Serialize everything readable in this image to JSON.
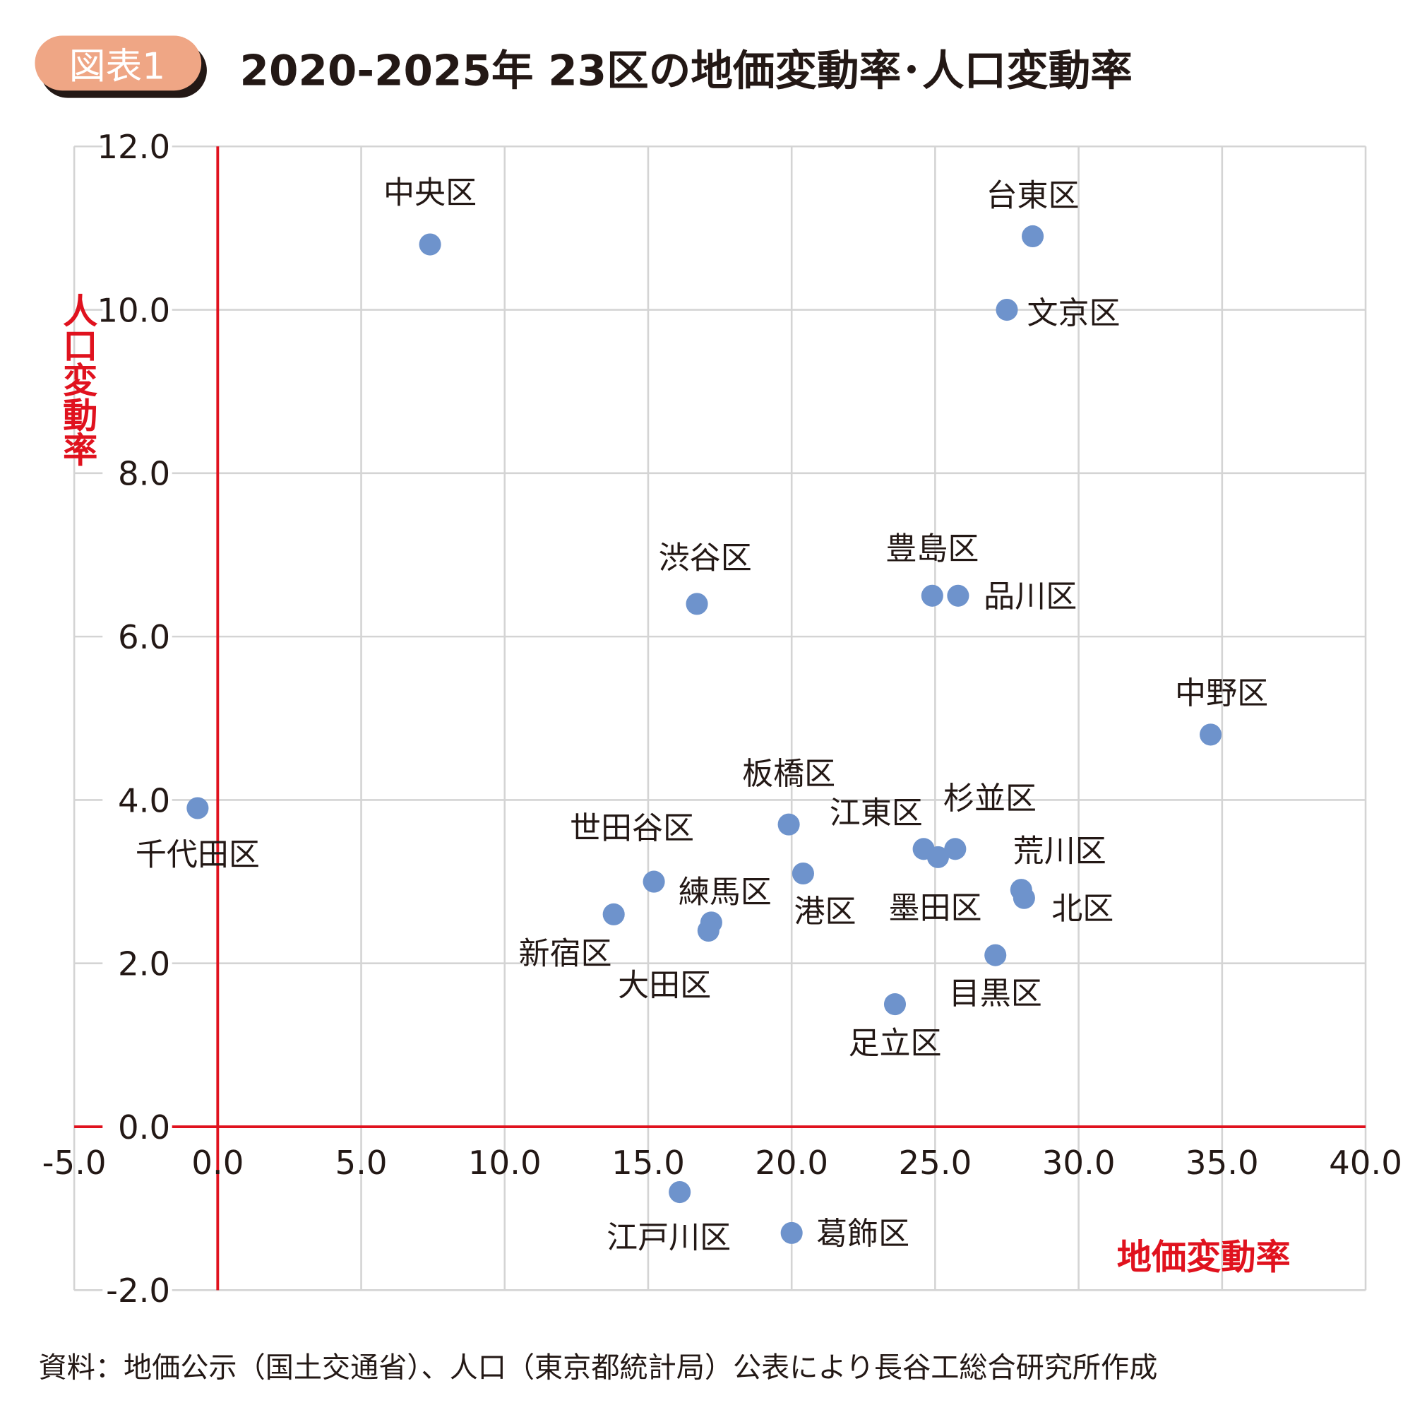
{
  "header": {
    "badge": "図表1",
    "title": "2020-2025年 23区の地価変動率･人口変動率"
  },
  "footer": {
    "source": "資料：地価公示（国土交通省）、人口（東京都統計局）公表により長谷工総合研究所作成"
  },
  "colors": {
    "badge": "#EFA685",
    "badge_shadow": "#231815",
    "point": "#6E93CC",
    "axis_red": "#E0121E",
    "grid": "#D4D4D4"
  },
  "chart_data": {
    "type": "scatter",
    "title": "2020-2025年 23区の地価変動率･人口変動率",
    "xlabel": "地価変動率",
    "ylabel": "人口変動率",
    "xlim": [
      -5,
      40
    ],
    "ylim": [
      -2,
      12
    ],
    "xticks": [
      "-5.0",
      "0.0",
      "5.0",
      "10.0",
      "15.0",
      "20.0",
      "25.0",
      "30.0",
      "35.0",
      "40.0"
    ],
    "yticks": [
      "-2.0",
      "0.0",
      "2.0",
      "4.0",
      "6.0",
      "8.0",
      "10.0",
      "12.0"
    ],
    "grid": true,
    "points": [
      {
        "label": "中央区",
        "x": 7.4,
        "y": 10.8
      },
      {
        "label": "台東区",
        "x": 28.4,
        "y": 10.9
      },
      {
        "label": "文京区",
        "x": 27.5,
        "y": 10.0
      },
      {
        "label": "渋谷区",
        "x": 16.7,
        "y": 6.4
      },
      {
        "label": "豊島区",
        "x": 24.9,
        "y": 6.5
      },
      {
        "label": "品川区",
        "x": 25.8,
        "y": 6.5
      },
      {
        "label": "中野区",
        "x": 34.6,
        "y": 4.8
      },
      {
        "label": "千代田区",
        "x": -0.7,
        "y": 3.9
      },
      {
        "label": "板橋区",
        "x": 19.9,
        "y": 3.7
      },
      {
        "label": "江東区",
        "x": 24.6,
        "y": 3.4
      },
      {
        "label": "杉並区",
        "x": 25.7,
        "y": 3.4
      },
      {
        "label": "墨田区",
        "x": 25.1,
        "y": 3.3
      },
      {
        "label": "港区",
        "x": 20.4,
        "y": 3.1
      },
      {
        "label": "世田谷区",
        "x": 15.2,
        "y": 3.0
      },
      {
        "label": "荒川区",
        "x": 28.0,
        "y": 2.9
      },
      {
        "label": "北区",
        "x": 28.1,
        "y": 2.8
      },
      {
        "label": "新宿区",
        "x": 13.8,
        "y": 2.6
      },
      {
        "label": "練馬区",
        "x": 17.2,
        "y": 2.5
      },
      {
        "label": "大田区",
        "x": 17.1,
        "y": 2.4
      },
      {
        "label": "目黒区",
        "x": 27.1,
        "y": 2.1
      },
      {
        "label": "足立区",
        "x": 23.6,
        "y": 1.5
      },
      {
        "label": "江戸川区",
        "x": 16.1,
        "y": -0.8
      },
      {
        "label": "葛飾区",
        "x": 20.0,
        "y": -1.3
      }
    ]
  }
}
